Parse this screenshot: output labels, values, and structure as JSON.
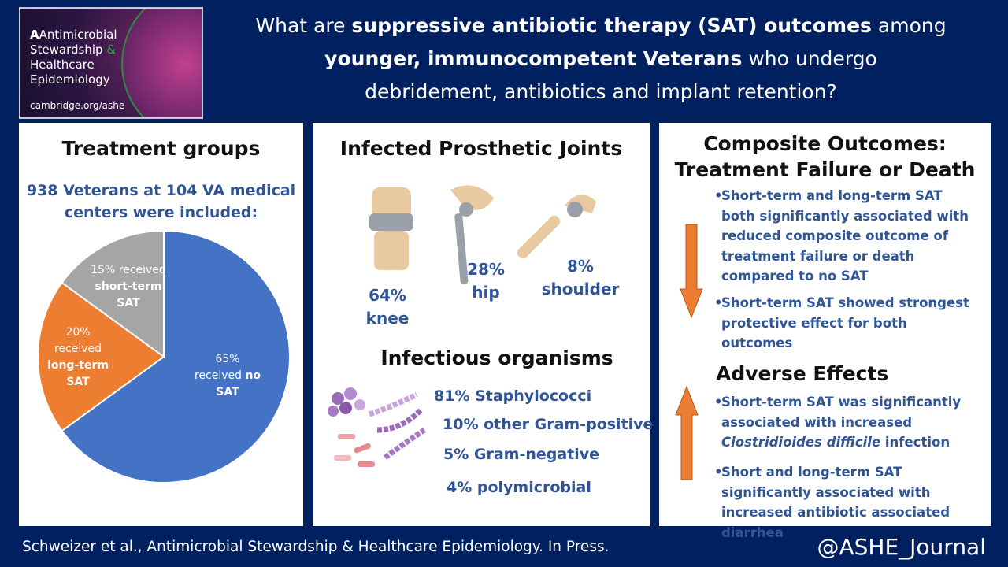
{
  "logo": {
    "lines": [
      "Antimicrobial",
      "Stewardship",
      "&",
      "Healthcare",
      "Epidemiology"
    ],
    "url": "cambridge.org/ashe"
  },
  "headline": {
    "l1a": "What are ",
    "l1b": "suppressive antibiotic therapy (SAT) outcomes",
    "l1c": " among",
    "l2a": "younger, immunocompetent Veterans",
    "l2b": " who undergo",
    "l3": "debridement, antibiotics and implant retention?"
  },
  "treatment": {
    "title": "Treatment groups",
    "subtitle1": "938 Veterans at 104 VA medical",
    "subtitle2": "centers were included:"
  },
  "chart_data": {
    "type": "pie",
    "slices": [
      {
        "label": "received no SAT",
        "value": 65,
        "color": "#4472c4"
      },
      {
        "label": "received long-term SAT",
        "value": 20,
        "color": "#ed7d31"
      },
      {
        "label": "received short-term SAT",
        "value": 15,
        "color": "#a5a5a5"
      }
    ],
    "labels": {
      "no": {
        "pct": "65%",
        "pre": "received ",
        "bold": "no",
        "post": "SAT"
      },
      "long": {
        "pct": "20%",
        "pre": "received",
        "bold": "long-term",
        "post": "SAT"
      },
      "short": {
        "pct": "15% received",
        "bold": "short-term",
        "post": "SAT"
      }
    }
  },
  "joints": {
    "title": "Infected Prosthetic Joints",
    "knee": {
      "pct": "64%",
      "label": "knee"
    },
    "hip": {
      "pct": "28%",
      "label": "hip"
    },
    "shoulder": {
      "pct": "8%",
      "label": "shoulder"
    }
  },
  "organisms": {
    "title": "Infectious organisms",
    "items": [
      "81% Staphylococci",
      "10% other Gram-positive",
      "5% Gram-negative",
      "4% polymicrobial"
    ]
  },
  "composite": {
    "title1": "Composite Outcomes:",
    "title2": "Treatment Failure or Death",
    "bullet1": "Short-term and long-term SAT both significantly associated with reduced composite outcome of treatment failure or death compared to no SAT",
    "bullet2": "Short-term SAT showed strongest protective effect for both outcomes",
    "arrow_color": "#ed7d31"
  },
  "adverse": {
    "title": "Adverse Effects",
    "bullet1_pre": "Short-term SAT was significantly associated with increased ",
    "bullet1_italic": "Clostridioides difficile",
    "bullet1_post": " infection",
    "bullet2": "Short and long-term SAT significantly associated with increased antibiotic associated diarrhea"
  },
  "footer": {
    "citation": "Schweizer et al., Antimicrobial Stewardship & Healthcare Epidemiology. In Press.",
    "handle": "@ASHE_Journal"
  }
}
